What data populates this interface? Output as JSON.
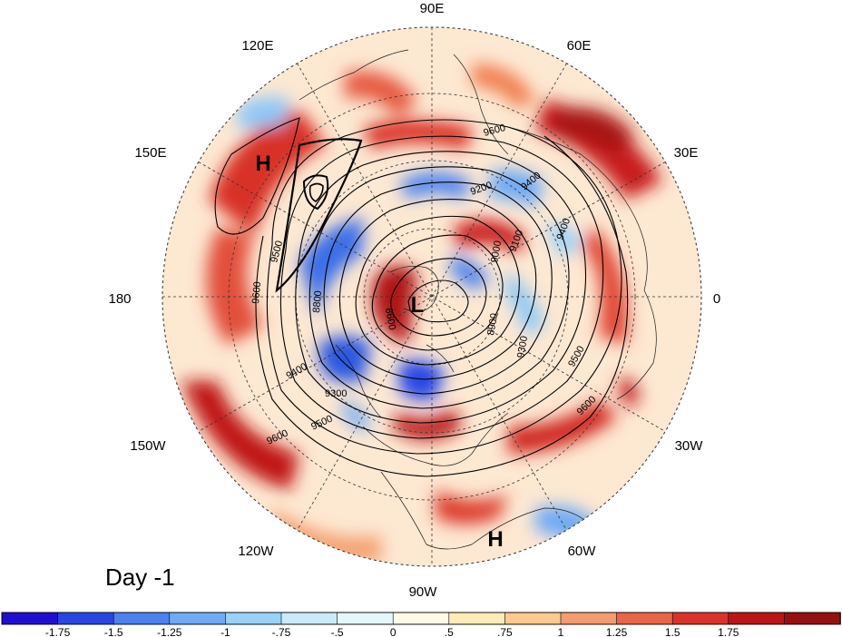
{
  "map": {
    "projection": "north-polar-stereographic",
    "day_label": "Day -1",
    "longitude_labels": [
      {
        "text": "90E",
        "lon": 90
      },
      {
        "text": "60E",
        "lon": 60
      },
      {
        "text": "30E",
        "lon": 30
      },
      {
        "text": "0",
        "lon": 0
      },
      {
        "text": "30W",
        "lon": -30
      },
      {
        "text": "60W",
        "lon": -60
      },
      {
        "text": "90W",
        "lon": -90
      },
      {
        "text": "120W",
        "lon": -120
      },
      {
        "text": "150W",
        "lon": -150
      },
      {
        "text": "180",
        "lon": 180
      },
      {
        "text": "150E",
        "lon": 150
      },
      {
        "text": "120E",
        "lon": 120
      }
    ],
    "pressure_centers": [
      {
        "label": "H",
        "name": "high-north-pacific"
      },
      {
        "label": "L",
        "name": "low-arctic"
      },
      {
        "label": "H",
        "name": "high-subtropical-atlantic"
      }
    ],
    "contour_labels": [
      "9600",
      "9500",
      "9400",
      "9300",
      "9200",
      "9100",
      "9000",
      "8900",
      "8800",
      "8600"
    ],
    "colorbar": {
      "colors": [
        "#1e0fd2",
        "#2846e6",
        "#4b82f0",
        "#6eaaf5",
        "#96d2fa",
        "#c8ebff",
        "#e6f6ff",
        "#fffae6",
        "#ffebb4",
        "#ffc88c",
        "#f59b6e",
        "#eb6446",
        "#dc3228",
        "#be1414",
        "#961010"
      ],
      "labels": [
        "-1.75",
        "-1.5",
        "-1.25",
        "-1",
        "-.75",
        "-.5",
        "0",
        ".5",
        ".75",
        "1",
        "1.25",
        "1.5",
        "1.75"
      ]
    }
  }
}
